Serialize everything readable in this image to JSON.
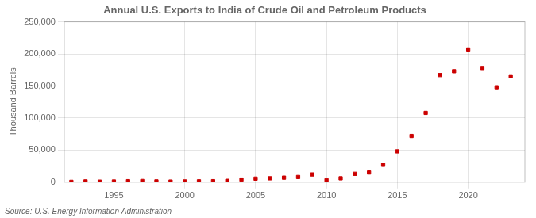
{
  "chart_data": {
    "type": "scatter",
    "title": "Annual U.S. Exports to India of Crude Oil and Petroleum Products",
    "y_label": "Thousand Barrels",
    "annotations": [
      "Source: U.S. Energy Information Administration"
    ],
    "x": [
      1992,
      1993,
      1994,
      1995,
      1996,
      1997,
      1998,
      1999,
      2000,
      2001,
      2002,
      2003,
      2004,
      2005,
      2006,
      2007,
      2008,
      2009,
      2010,
      2011,
      2012,
      2013,
      2014,
      2015,
      2016,
      2017,
      2018,
      2019,
      2020,
      2021,
      2022,
      2023
    ],
    "values": [
      500,
      1200,
      800,
      1000,
      1500,
      1800,
      1200,
      900,
      1100,
      1300,
      1500,
      2000,
      4000,
      5500,
      6000,
      7000,
      8000,
      12000,
      3000,
      6000,
      13000,
      15000,
      27000,
      48000,
      72000,
      108000,
      167000,
      173000,
      207000,
      178000,
      148000,
      165000
    ],
    "color": "#cc0000",
    "marker": "square",
    "xlim": [
      1991.5,
      2024
    ],
    "xticks": [
      1995,
      2000,
      2005,
      2010,
      2015,
      2020
    ],
    "ylim": [
      0,
      250000
    ],
    "yticks": [
      0,
      {
        "value": 50000,
        "label": "50,000"
      },
      {
        "value": 100000,
        "label": "100,000"
      },
      {
        "value": 150000,
        "label": "150,000"
      },
      {
        "value": 200000,
        "label": "200,000"
      },
      {
        "value": 250000,
        "label": "250,000"
      }
    ],
    "grid": true
  }
}
